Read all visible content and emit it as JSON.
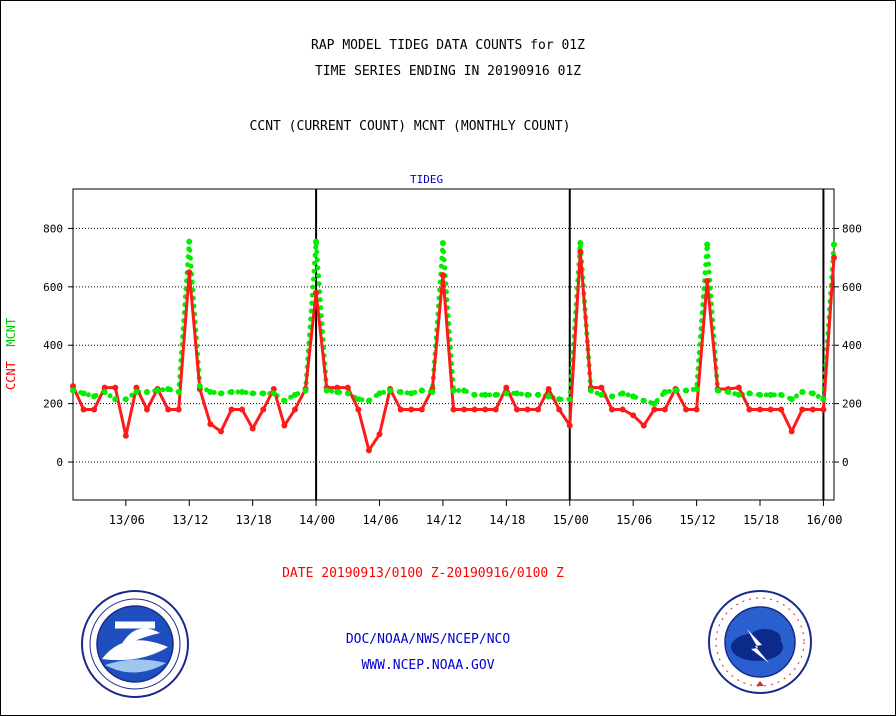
{
  "titles": {
    "line1": "RAP MODEL TIDEG DATA COUNTS for 01Z",
    "line2": "TIME SERIES ENDING IN 20190916 01Z",
    "subtitle": "CCNT (CURRENT COUNT) MCNT (MONTHLY COUNT)",
    "panel": "TIDEG"
  },
  "ylabel": {
    "ccnt": "CCNT",
    "mcnt": "MCNT"
  },
  "daterange": "DATE 20190913/0100 Z-20190916/0100 Z",
  "credits": {
    "line1": "DOC/NOAA/NWS/NCEP/NCO",
    "line2": "WWW.NCEP.NOAA.GOV"
  },
  "logos": {
    "left": "noaa-logo",
    "right": "national-weather-service-logo"
  },
  "colors": {
    "ccnt": "#ff0000",
    "mcnt": "#00ee00",
    "panel_label": "#0000cc",
    "credits": "#0000cc",
    "daterange": "#ff0000"
  },
  "chart_data": {
    "type": "line",
    "title": "RAP MODEL TIDEG DATA COUNTS for 01Z",
    "subtitle": "TIME SERIES ENDING IN 20190916 01Z",
    "xlabel": "DATE 20190913/0100 Z-20190916/0100 Z",
    "ylabel": "CCNT  MCNT",
    "x_unit": "hours since 20190913/0100 Z (hourly)",
    "xlim": [
      0,
      72
    ],
    "ylim": [
      -130,
      935
    ],
    "yticks": [
      0,
      200,
      400,
      600,
      800
    ],
    "xtick_labels": [
      {
        "hour": 5,
        "label": "13/06"
      },
      {
        "hour": 11,
        "label": "13/12"
      },
      {
        "hour": 17,
        "label": "13/18"
      },
      {
        "hour": 23,
        "label": "14/00"
      },
      {
        "hour": 29,
        "label": "14/06"
      },
      {
        "hour": 35,
        "label": "14/12"
      },
      {
        "hour": 41,
        "label": "14/18"
      },
      {
        "hour": 47,
        "label": "15/00"
      },
      {
        "hour": 53,
        "label": "15/06"
      },
      {
        "hour": 59,
        "label": "15/12"
      },
      {
        "hour": 65,
        "label": "15/18"
      },
      {
        "hour": 71,
        "label": "16/00"
      }
    ],
    "day_boundaries": [
      23,
      47,
      71
    ],
    "grid": true,
    "series": [
      {
        "name": "CCNT",
        "values": [
          260,
          180,
          180,
          255,
          255,
          90,
          255,
          180,
          250,
          180,
          180,
          650,
          250,
          130,
          105,
          180,
          180,
          115,
          180,
          250,
          125,
          180,
          250,
          580,
          255,
          255,
          255,
          180,
          40,
          95,
          250,
          180,
          180,
          180,
          250,
          640,
          180,
          180,
          180,
          180,
          180,
          255,
          180,
          180,
          180,
          250,
          180,
          125,
          720,
          255,
          255,
          180,
          180,
          160,
          125,
          180,
          180,
          250,
          180,
          180,
          620,
          250,
          250,
          255,
          180,
          180,
          180,
          180,
          105,
          180,
          180,
          180,
          700
        ]
      },
      {
        "name": "MCNT",
        "values": [
          245,
          235,
          225,
          240,
          215,
          215,
          240,
          240,
          245,
          250,
          240,
          755,
          260,
          240,
          235,
          240,
          240,
          235,
          235,
          235,
          210,
          230,
          245,
          755,
          245,
          240,
          235,
          215,
          210,
          235,
          245,
          240,
          235,
          245,
          240,
          750,
          245,
          245,
          230,
          230,
          230,
          235,
          235,
          230,
          230,
          225,
          215,
          215,
          750,
          245,
          230,
          225,
          235,
          225,
          210,
          200,
          240,
          245,
          245,
          250,
          745,
          245,
          240,
          230,
          235,
          230,
          230,
          230,
          215,
          240,
          235,
          215,
          745
        ]
      }
    ]
  }
}
